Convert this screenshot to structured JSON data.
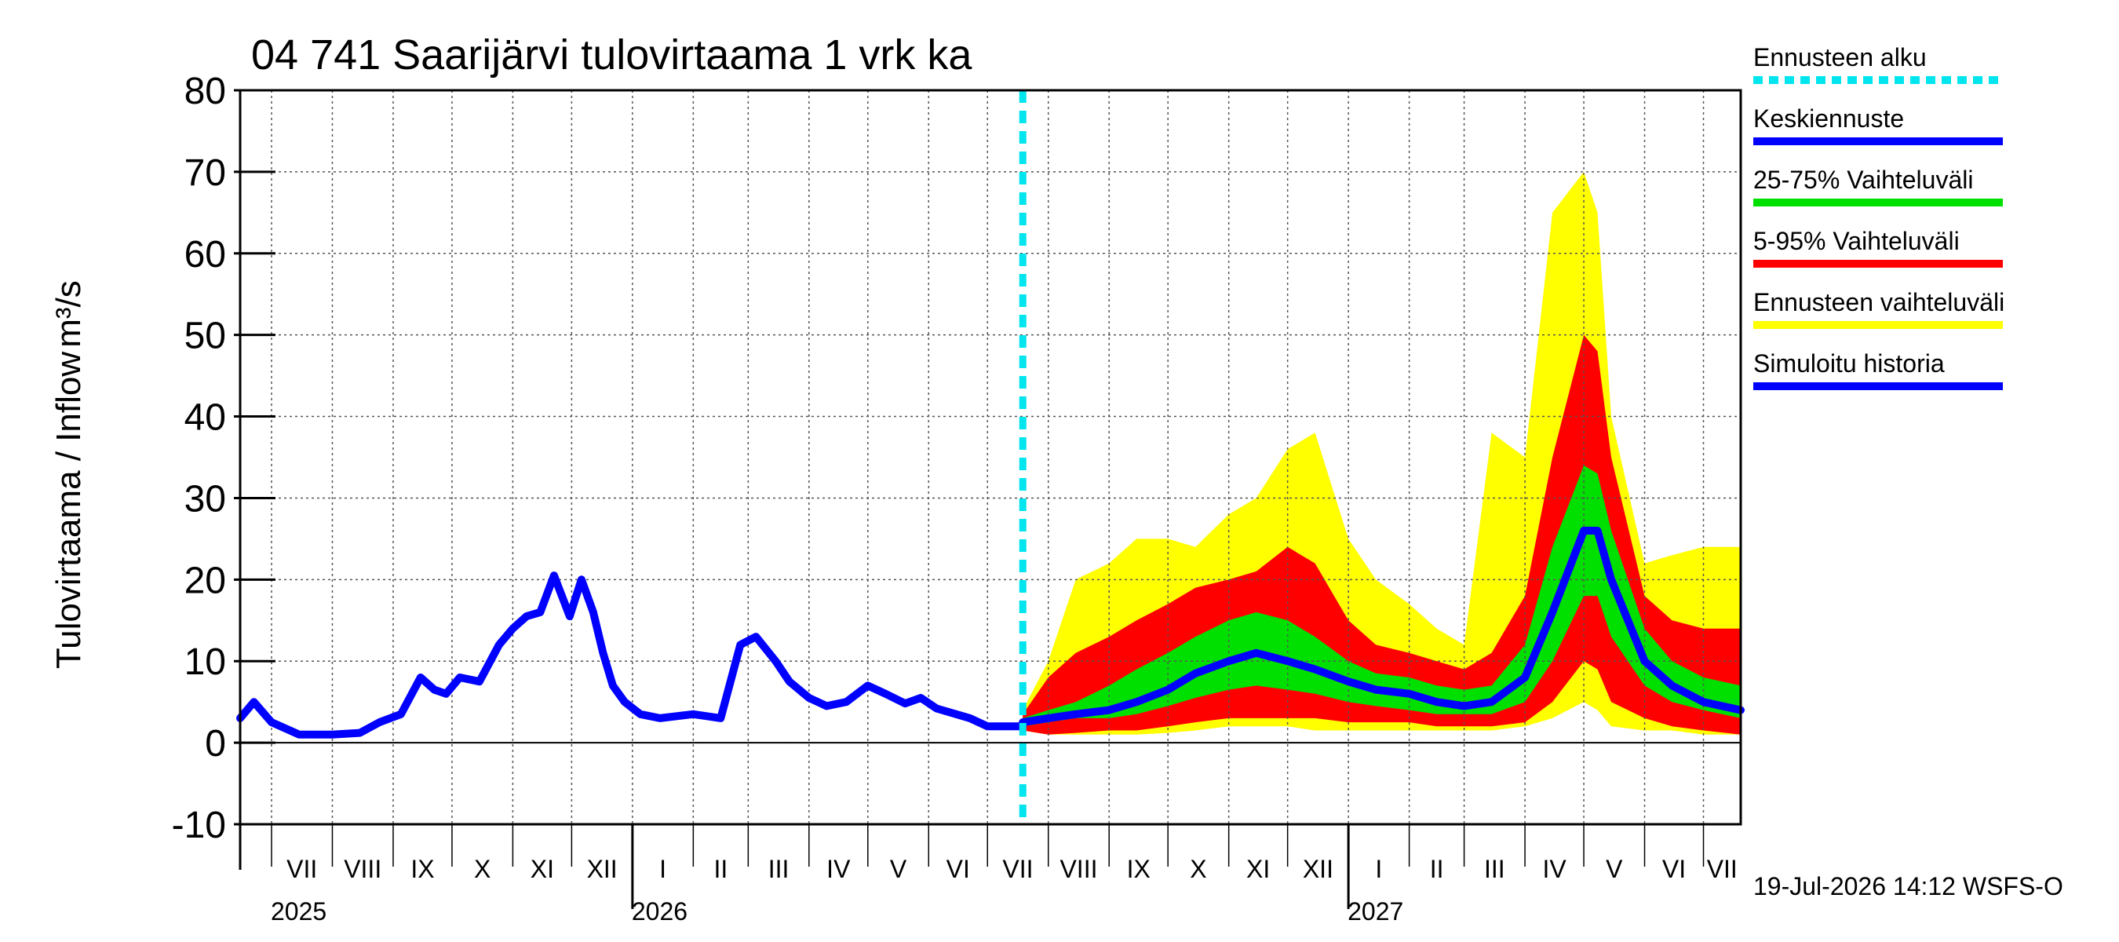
{
  "chart_data": {
    "type": "line",
    "title": "04 741 Saarijärvi tulovirtaama 1 vrk ka",
    "ylabel": "Tulovirtaama / Inflow",
    "yunit": "m³/s",
    "ylim": [
      -10,
      80
    ],
    "yticks": [
      -10,
      0,
      10,
      20,
      30,
      40,
      50,
      60,
      70,
      80
    ],
    "xlim": [
      "2025-06-15",
      "2027-07-20"
    ],
    "grid": true,
    "legend_position": "right",
    "footer": "19-Jul-2026 14:12 WSFS-O",
    "forecast_start": "2026-07-19",
    "month_labels": [
      {
        "date": "2025-07-01",
        "label": "VII"
      },
      {
        "date": "2025-08-01",
        "label": "VIII"
      },
      {
        "date": "2025-09-01",
        "label": "IX"
      },
      {
        "date": "2025-10-01",
        "label": "X"
      },
      {
        "date": "2025-11-01",
        "label": "XI"
      },
      {
        "date": "2025-12-01",
        "label": "XII"
      },
      {
        "date": "2026-01-01",
        "label": "I"
      },
      {
        "date": "2026-02-01",
        "label": "II"
      },
      {
        "date": "2026-03-01",
        "label": "III"
      },
      {
        "date": "2026-04-01",
        "label": "IV"
      },
      {
        "date": "2026-05-01",
        "label": "V"
      },
      {
        "date": "2026-06-01",
        "label": "VI"
      },
      {
        "date": "2026-07-01",
        "label": "VII"
      },
      {
        "date": "2026-08-01",
        "label": "VIII"
      },
      {
        "date": "2026-09-01",
        "label": "IX"
      },
      {
        "date": "2026-10-01",
        "label": "X"
      },
      {
        "date": "2026-11-01",
        "label": "XI"
      },
      {
        "date": "2026-12-01",
        "label": "XII"
      },
      {
        "date": "2027-01-01",
        "label": "I"
      },
      {
        "date": "2027-02-01",
        "label": "II"
      },
      {
        "date": "2027-03-01",
        "label": "III"
      },
      {
        "date": "2027-04-01",
        "label": "IV"
      },
      {
        "date": "2027-05-01",
        "label": "V"
      },
      {
        "date": "2027-06-01",
        "label": "VI"
      },
      {
        "date": "2027-07-01",
        "label": "VII"
      }
    ],
    "year_labels": [
      {
        "date": "2025-07-01",
        "label": "2025"
      },
      {
        "date": "2026-01-01",
        "label": "2026"
      },
      {
        "date": "2027-01-01",
        "label": "2027"
      }
    ],
    "legend": [
      {
        "label": "Ennusteen alku",
        "color": "#00e5ee",
        "style": "dashed"
      },
      {
        "label": "Keskiennuste",
        "color": "#0000ff",
        "style": "solid"
      },
      {
        "label": "25-75% Vaihteluväli",
        "color": "#00e000",
        "style": "solid"
      },
      {
        "label": "5-95% Vaihteluväli",
        "color": "#ff0000",
        "style": "solid"
      },
      {
        "label": "Ennusteen vaihteluväli",
        "color": "#ffff00",
        "style": "solid"
      },
      {
        "label": "Simuloitu historia",
        "color": "#0000ff",
        "style": "solid"
      }
    ],
    "series": [
      {
        "name": "Simuloitu historia",
        "color": "#0000ff",
        "x": [
          "2025-06-15",
          "2025-06-22",
          "2025-07-01",
          "2025-07-15",
          "2025-08-01",
          "2025-08-15",
          "2025-08-25",
          "2025-09-05",
          "2025-09-15",
          "2025-09-22",
          "2025-09-28",
          "2025-10-05",
          "2025-10-15",
          "2025-10-25",
          "2025-11-01",
          "2025-11-08",
          "2025-11-15",
          "2025-11-22",
          "2025-11-30",
          "2025-12-06",
          "2025-12-12",
          "2025-12-17",
          "2025-12-22",
          "2025-12-28",
          "2026-01-05",
          "2026-01-15",
          "2026-02-01",
          "2026-02-15",
          "2026-02-25",
          "2026-03-05",
          "2026-03-15",
          "2026-03-22",
          "2026-04-01",
          "2026-04-10",
          "2026-04-20",
          "2026-05-01",
          "2026-05-10",
          "2026-05-20",
          "2026-05-28",
          "2026-06-05",
          "2026-06-15",
          "2026-06-22",
          "2026-07-01",
          "2026-07-10",
          "2026-07-19"
        ],
        "values": [
          3,
          5,
          2.5,
          1,
          1,
          1.2,
          2.5,
          3.5,
          8,
          6.5,
          6,
          8,
          7.5,
          12,
          14,
          15.5,
          16,
          20.5,
          15.5,
          20,
          16,
          11,
          7,
          5,
          3.5,
          3,
          3.5,
          3,
          12,
          13,
          10,
          7.5,
          5.5,
          4.5,
          5,
          7,
          6,
          4.8,
          5.5,
          4.2,
          3.5,
          3,
          2,
          2,
          2
        ]
      },
      {
        "name": "Keskiennuste",
        "color": "#0000ff",
        "x": [
          "2026-07-19",
          "2026-08-01",
          "2026-08-15",
          "2026-09-01",
          "2026-09-15",
          "2026-10-01",
          "2026-10-15",
          "2026-11-01",
          "2026-11-15",
          "2026-12-01",
          "2026-12-15",
          "2027-01-01",
          "2027-01-15",
          "2027-02-01",
          "2027-02-15",
          "2027-03-01",
          "2027-03-15",
          "2027-04-01",
          "2027-04-15",
          "2027-05-01",
          "2027-05-08",
          "2027-05-15",
          "2027-06-01",
          "2027-06-15",
          "2027-07-01",
          "2027-07-20"
        ],
        "values": [
          2.5,
          3,
          3.5,
          4,
          5,
          6.5,
          8.5,
          10,
          11,
          10,
          9,
          7.5,
          6.5,
          6,
          5,
          4.5,
          5,
          8,
          16,
          26,
          26,
          20,
          10,
          7,
          5,
          4
        ]
      }
    ],
    "bands": [
      {
        "name": "Ennusteen vaihteluväli",
        "color": "#ffff00",
        "x": [
          "2026-07-19",
          "2026-08-01",
          "2026-08-15",
          "2026-09-01",
          "2026-09-15",
          "2026-10-01",
          "2026-10-15",
          "2026-11-01",
          "2026-11-15",
          "2026-12-01",
          "2026-12-15",
          "2027-01-01",
          "2027-01-15",
          "2027-02-01",
          "2027-02-15",
          "2027-03-01",
          "2027-03-15",
          "2027-04-01",
          "2027-04-15",
          "2027-05-01",
          "2027-05-08",
          "2027-05-15",
          "2027-06-01",
          "2027-06-15",
          "2027-07-01",
          "2027-07-20"
        ],
        "lower": [
          1.5,
          1,
          1,
          1,
          1,
          1.2,
          1.5,
          2,
          2,
          2,
          1.5,
          1.5,
          1.5,
          1.5,
          1.5,
          1.5,
          1.5,
          2,
          3,
          5,
          4,
          2,
          1.5,
          1.5,
          1,
          1
        ],
        "upper": [
          4,
          10,
          20,
          22,
          25,
          25,
          24,
          28,
          30,
          36,
          38,
          25,
          20,
          17,
          14,
          12,
          38,
          35,
          65,
          70,
          65,
          40,
          22,
          23,
          24,
          24
        ]
      },
      {
        "name": "5-95% Vaihteluväli",
        "color": "#ff0000",
        "x": [
          "2026-07-19",
          "2026-08-01",
          "2026-08-15",
          "2026-09-01",
          "2026-09-15",
          "2026-10-01",
          "2026-10-15",
          "2026-11-01",
          "2026-11-15",
          "2026-12-01",
          "2026-12-15",
          "2027-01-01",
          "2027-01-15",
          "2027-02-01",
          "2027-02-15",
          "2027-03-01",
          "2027-03-15",
          "2027-04-01",
          "2027-04-15",
          "2027-05-01",
          "2027-05-08",
          "2027-05-15",
          "2027-06-01",
          "2027-06-15",
          "2027-07-01",
          "2027-07-20"
        ],
        "lower": [
          1.5,
          1,
          1.2,
          1.5,
          1.5,
          2,
          2.5,
          3,
          3,
          3,
          3,
          2.5,
          2.5,
          2.5,
          2,
          2,
          2,
          2.5,
          5,
          10,
          9,
          5,
          3,
          2,
          1.5,
          1
        ],
        "upper": [
          3.5,
          8,
          11,
          13,
          15,
          17,
          19,
          20,
          21,
          24,
          22,
          15,
          12,
          11,
          10,
          9,
          11,
          18,
          35,
          50,
          48,
          35,
          18,
          15,
          14,
          14
        ]
      },
      {
        "name": "25-75% Vaihteluväli",
        "color": "#00e000",
        "x": [
          "2026-07-19",
          "2026-08-01",
          "2026-08-15",
          "2026-09-01",
          "2026-09-15",
          "2026-10-01",
          "2026-10-15",
          "2026-11-01",
          "2026-11-15",
          "2026-12-01",
          "2026-12-15",
          "2027-01-01",
          "2027-01-15",
          "2027-02-01",
          "2027-02-15",
          "2027-03-01",
          "2027-03-15",
          "2027-04-01",
          "2027-04-15",
          "2027-05-01",
          "2027-05-08",
          "2027-05-15",
          "2027-06-01",
          "2027-06-15",
          "2027-07-01",
          "2027-07-20"
        ],
        "lower": [
          2,
          2.5,
          3,
          3,
          3.5,
          4.5,
          5.5,
          6.5,
          7,
          6.5,
          6,
          5,
          4.5,
          4,
          3.5,
          3.5,
          3.5,
          5,
          10,
          18,
          18,
          13,
          7,
          5,
          4,
          3
        ],
        "upper": [
          3,
          4,
          5,
          7,
          9,
          11,
          13,
          15,
          16,
          15,
          13,
          10,
          8.5,
          8,
          7,
          6.5,
          7,
          12,
          24,
          34,
          33,
          26,
          14,
          10,
          8,
          7
        ]
      }
    ]
  }
}
